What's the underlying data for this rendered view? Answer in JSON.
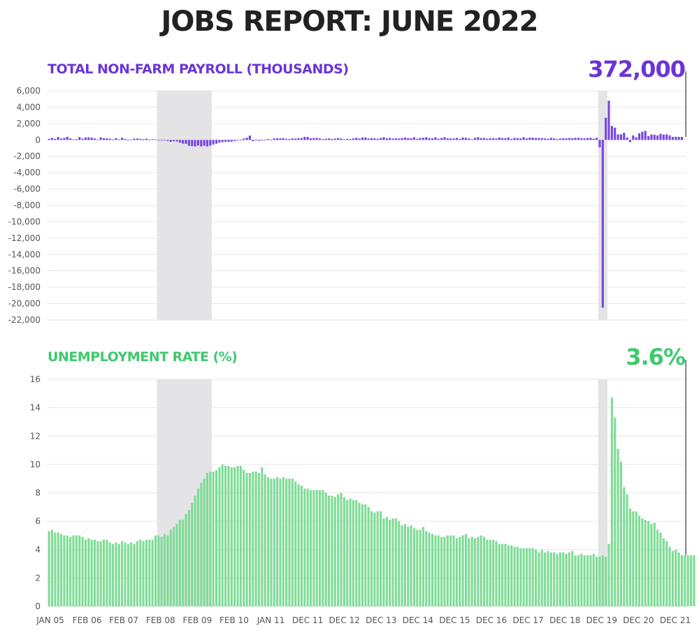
{
  "title": "JOBS REPORT: JUNE 2022",
  "colors": {
    "payroll": "#7a45e0",
    "unemployment": "#7fdc96",
    "recession_shade": "#e4e4e6",
    "grid": "#e6e6e6",
    "marker_line": "#333333"
  },
  "chart_data": [
    {
      "type": "bar",
      "title": "TOTAL NON-FARM PAYROLL (THOUSANDS)",
      "headline": "372,000",
      "ylim": [
        -22000,
        6000
      ],
      "y_ticks": [
        "6,000",
        "4,000",
        "2,000",
        "0",
        "-2,000",
        "-4,000",
        "-6,000",
        "-8,000",
        "-10,000",
        "-12,000",
        "-14,000",
        "-16,000",
        "-18,000",
        "-20,000",
        "-22,000"
      ],
      "y_tick_values": [
        6000,
        4000,
        2000,
        0,
        -2000,
        -4000,
        -6000,
        -8000,
        -10000,
        -12000,
        -14000,
        -16000,
        -18000,
        -20000,
        -22000
      ],
      "grid": true,
      "recession_periods": [
        [
          "Jan 08",
          "Jun 09"
        ],
        [
          "Feb 20",
          "Apr 20"
        ]
      ],
      "x_start": "Jan 05",
      "x_end": "Jun 22",
      "values": [
        130,
        240,
        140,
        360,
        170,
        250,
        380,
        190,
        60,
        90,
        340,
        150,
        290,
        310,
        280,
        180,
        20,
        320,
        210,
        190,
        160,
        40,
        220,
        80,
        270,
        120,
        10,
        40,
        160,
        180,
        130,
        100,
        160,
        40,
        90,
        60,
        10,
        0,
        -40,
        -120,
        -230,
        -170,
        -190,
        -330,
        -460,
        -480,
        -720,
        -770,
        -790,
        -690,
        -800,
        -700,
        -800,
        -700,
        -560,
        -460,
        -330,
        -280,
        -230,
        -230,
        -220,
        -130,
        -50,
        20,
        170,
        270,
        530,
        -140,
        -40,
        -110,
        -40,
        -60,
        120,
        50,
        180,
        200,
        190,
        220,
        130,
        110,
        190,
        170,
        220,
        220,
        370,
        360,
        210,
        240,
        240,
        190,
        100,
        150,
        180,
        120,
        160,
        220,
        170,
        80,
        140,
        110,
        180,
        260,
        170,
        300,
        300,
        170,
        220,
        190,
        140,
        240,
        330,
        190,
        240,
        170,
        200,
        180,
        230,
        290,
        230,
        210,
        320,
        150,
        250,
        260,
        330,
        230,
        210,
        320,
        150,
        240,
        330,
        190,
        180,
        170,
        250,
        140,
        290,
        270,
        180,
        80,
        260,
        330,
        220,
        240,
        160,
        210,
        230,
        160,
        300,
        230,
        200,
        290,
        120,
        240,
        220,
        190,
        330,
        180,
        280,
        280,
        240,
        230,
        220,
        180,
        140,
        260,
        190,
        110,
        170,
        210,
        190,
        230,
        220,
        260,
        260,
        210,
        180,
        240,
        250,
        150,
        260,
        -900,
        -20500,
        2700,
        4800,
        1700,
        1500,
        680,
        680,
        870,
        300,
        -270,
        550,
        320,
        820,
        1000,
        1100,
        470,
        660,
        630,
        550,
        740,
        660,
        680,
        560,
        370,
        390,
        370,
        370
      ],
      "x_ticks": [
        "JAN 05",
        "FEB 06",
        "FEB 07",
        "FEB 08",
        "FEB 09",
        "FEB 10",
        "JAN 11",
        "DEC 11",
        "DEC 12",
        "DEC 13",
        "DEC 14",
        "DEC 15",
        "DEC 16",
        "DEC 17",
        "DEC 18",
        "DEC 19",
        "DEC 20",
        "DEC 21"
      ]
    },
    {
      "type": "bar",
      "title": "UNEMPLOYMENT RATE (%)",
      "headline": "3.6%",
      "ylim": [
        0,
        16
      ],
      "y_ticks": [
        "16",
        "14",
        "12",
        "10",
        "8",
        "6",
        "4",
        "2",
        "0"
      ],
      "y_tick_values": [
        16,
        14,
        12,
        10,
        8,
        6,
        4,
        2,
        0
      ],
      "grid": true,
      "recession_periods": [
        [
          "Jan 08",
          "Jun 09"
        ],
        [
          "Feb 20",
          "Apr 20"
        ]
      ],
      "x_start": "Jan 05",
      "x_end": "Jun 22",
      "values": [
        5.3,
        5.4,
        5.2,
        5.2,
        5.1,
        5.0,
        5.0,
        4.9,
        5.0,
        5.0,
        5.0,
        4.9,
        4.7,
        4.8,
        4.7,
        4.7,
        4.6,
        4.6,
        4.7,
        4.7,
        4.5,
        4.4,
        4.5,
        4.4,
        4.6,
        4.5,
        4.4,
        4.5,
        4.4,
        4.6,
        4.7,
        4.6,
        4.7,
        4.7,
        4.7,
        5.0,
        5.0,
        4.9,
        5.1,
        5.0,
        5.4,
        5.6,
        5.8,
        6.1,
        6.1,
        6.5,
        6.8,
        7.3,
        7.8,
        8.3,
        8.7,
        9.0,
        9.4,
        9.5,
        9.5,
        9.6,
        9.8,
        10.0,
        9.9,
        9.9,
        9.8,
        9.8,
        9.9,
        9.9,
        9.6,
        9.4,
        9.4,
        9.5,
        9.5,
        9.4,
        9.8,
        9.3,
        9.1,
        9.0,
        9.0,
        9.1,
        9.0,
        9.1,
        9.0,
        9.0,
        9.0,
        8.8,
        8.6,
        8.5,
        8.3,
        8.3,
        8.2,
        8.2,
        8.2,
        8.2,
        8.2,
        8.0,
        7.8,
        7.8,
        7.7,
        7.9,
        8.0,
        7.7,
        7.5,
        7.6,
        7.5,
        7.5,
        7.3,
        7.2,
        7.2,
        7.0,
        6.7,
        6.6,
        6.7,
        6.7,
        6.2,
        6.3,
        6.1,
        6.2,
        6.2,
        6.0,
        5.7,
        5.8,
        5.6,
        5.7,
        5.5,
        5.4,
        5.4,
        5.6,
        5.3,
        5.2,
        5.1,
        5.0,
        5.0,
        4.9,
        4.9,
        5.0,
        5.0,
        5.0,
        4.8,
        4.9,
        5.0,
        5.1,
        4.8,
        4.9,
        4.8,
        4.9,
        5.0,
        4.9,
        4.7,
        4.7,
        4.7,
        4.6,
        4.4,
        4.4,
        4.4,
        4.3,
        4.3,
        4.2,
        4.2,
        4.1,
        4.1,
        4.1,
        4.1,
        4.1,
        4.0,
        3.8,
        4.0,
        3.8,
        3.9,
        3.8,
        3.8,
        3.7,
        3.8,
        3.8,
        3.7,
        3.8,
        3.9,
        3.6,
        3.6,
        3.7,
        3.6,
        3.6,
        3.6,
        3.7,
        3.5,
        3.5,
        3.6,
        3.5,
        4.4,
        14.7,
        13.3,
        11.1,
        10.2,
        8.4,
        7.9,
        6.9,
        6.7,
        6.7,
        6.4,
        6.2,
        6.1,
        6.0,
        5.8,
        5.9,
        5.4,
        5.2,
        4.8,
        4.6,
        4.2,
        3.9,
        4.0,
        3.8,
        3.6,
        3.6,
        3.6,
        3.6,
        3.6
      ],
      "x_ticks": [
        "JAN 05",
        "FEB 06",
        "FEB 07",
        "FEB 08",
        "FEB 09",
        "FEB 10",
        "JAN 11",
        "DEC 11",
        "DEC 12",
        "DEC 13",
        "DEC 14",
        "DEC 15",
        "DEC 16",
        "DEC 17",
        "DEC 18",
        "DEC 19",
        "DEC 20",
        "DEC 21"
      ]
    }
  ]
}
